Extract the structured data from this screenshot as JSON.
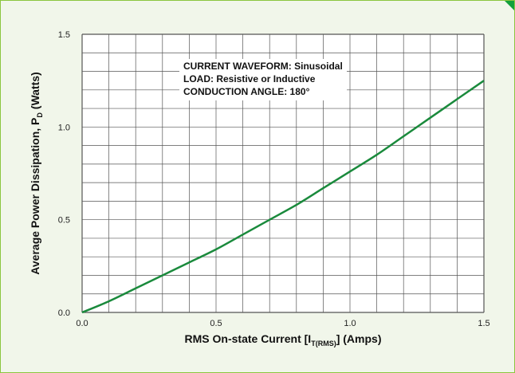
{
  "colors": {
    "background": "#f1f6ea",
    "frame_border": "#8cc63f",
    "corner_accent": "#13a03a",
    "plot_background": "#ffffff",
    "grid": "#555555",
    "curve": "#1a8a3c"
  },
  "chart_data": {
    "type": "line",
    "title": "",
    "xlabel": {
      "prefix": "RMS On-state Current [I",
      "subscript": "T(RMS)",
      "suffix": "] (Amps)"
    },
    "ylabel": {
      "prefix": "Average Power Dissipation, P",
      "subscript": "D",
      "suffix": "  (Watts)"
    },
    "xlim": [
      0,
      1.5
    ],
    "ylim": [
      0,
      1.5
    ],
    "x_ticks": [
      0,
      0.5,
      1.0,
      1.5
    ],
    "x_tick_labels": [
      "0.0",
      "0.5",
      "1.0",
      "1.5"
    ],
    "y_ticks": [
      0,
      0.5,
      1.0,
      1.5
    ],
    "y_tick_labels": [
      "0.0",
      "0.5",
      "1.0",
      "1.5"
    ],
    "grid": true,
    "grid_x_divisions": 15,
    "grid_y_divisions": 15,
    "legend": "none",
    "annotations": [
      "CURRENT WAVEFORM: Sinusoidal",
      "LOAD: Resistive or Inductive",
      "CONDUCTION ANGLE: 180°"
    ],
    "series": [
      {
        "x": [
          0,
          0.1,
          0.2,
          0.3,
          0.4,
          0.5,
          0.6,
          0.7,
          0.8,
          0.9,
          1.0,
          1.1,
          1.2,
          1.3,
          1.4,
          1.5
        ],
        "y": [
          0,
          0.06,
          0.13,
          0.2,
          0.27,
          0.34,
          0.42,
          0.5,
          0.58,
          0.67,
          0.76,
          0.85,
          0.95,
          1.05,
          1.15,
          1.25
        ]
      }
    ]
  }
}
